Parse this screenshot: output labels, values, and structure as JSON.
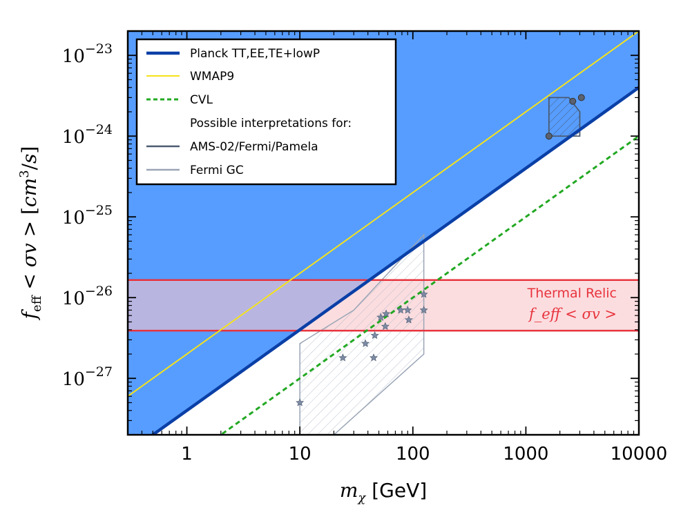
{
  "chart_data": {
    "type": "line",
    "xlabel": "$m_\\chi$ [GeV]",
    "ylabel": "$f_{\\rm eff} < \\sigma v > [cm^3/s]$",
    "xscale": "log",
    "yscale": "log",
    "xlim": [
      0.3,
      10000
    ],
    "ylim": [
      2e-28,
      2e-23
    ],
    "xticks": [
      1,
      10,
      100,
      1000,
      10000
    ],
    "xtick_labels": [
      "1",
      "10",
      "100",
      "1000",
      "10000"
    ],
    "yticks": [
      1e-27,
      1e-26,
      1e-25,
      1e-24,
      1e-23
    ],
    "ytick_labels": [
      {
        "base": "10",
        "exp": "−27"
      },
      {
        "base": "10",
        "exp": "−26"
      },
      {
        "base": "10",
        "exp": "−25"
      },
      {
        "base": "10",
        "exp": "−24"
      },
      {
        "base": "10",
        "exp": "−23"
      }
    ],
    "legend_position": "top-left",
    "series": [
      {
        "name": "Planck TT,EE,TE+lowP",
        "style": "solid-thick",
        "color": "#0a3fa6",
        "x": [
          0.3,
          10000
        ],
        "y": [
          1.2e-28,
          4e-24
        ],
        "fill_above": "#579dff"
      },
      {
        "name": "WMAP9",
        "style": "solid",
        "color": "#f5e21b",
        "x": [
          0.3,
          10000
        ],
        "y": [
          6e-28,
          2e-23
        ]
      },
      {
        "name": "CVL",
        "style": "dashed",
        "color": "#22a822",
        "x": [
          0.3,
          10000
        ],
        "y": [
          3e-29,
          1e-24
        ]
      }
    ],
    "legend_extra": [
      {
        "name": "Possible interpretations for:",
        "color": null
      },
      {
        "name": "AMS-02/Fermi/Pamela",
        "color": "#4a5a70"
      },
      {
        "name": "Fermi GC",
        "color": "#9aa5b5"
      }
    ],
    "ams_region": {
      "polygon": [
        [
          1600,
          1e-24
        ],
        [
          1600,
          3e-24
        ],
        [
          2400,
          3e-24
        ],
        [
          3000,
          2e-24
        ],
        [
          3000,
          1e-24
        ]
      ],
      "points": [
        [
          1600,
          1e-24
        ],
        [
          2600,
          2.7e-24
        ],
        [
          3100,
          3e-24
        ]
      ]
    },
    "fermi_gc_region": {
      "polygon": [
        [
          10,
          2e-28
        ],
        [
          10,
          2.7e-27
        ],
        [
          30,
          7e-27
        ],
        [
          125,
          6e-26
        ],
        [
          125,
          2e-27
        ],
        [
          20,
          2e-28
        ]
      ],
      "stars": [
        [
          10,
          5e-28
        ],
        [
          24,
          1.8e-27
        ],
        [
          38,
          2.7e-27
        ],
        [
          45,
          1.8e-27
        ],
        [
          46,
          3.4e-27
        ],
        [
          52,
          5.7e-27
        ],
        [
          57,
          4.4e-27
        ],
        [
          58,
          6.3e-27
        ],
        [
          78,
          7e-27
        ],
        [
          90,
          7e-27
        ],
        [
          92,
          5.3e-27
        ],
        [
          125,
          1.1e-26
        ],
        [
          125,
          7e-27
        ]
      ]
    },
    "thermal_relic": {
      "y_range": [
        3.9e-27,
        1.65e-26
      ],
      "color": "#e8333c",
      "fill": "#f8c6cb",
      "label_line1": "Thermal Relic",
      "label_line2": "f_eff < σv >"
    }
  }
}
